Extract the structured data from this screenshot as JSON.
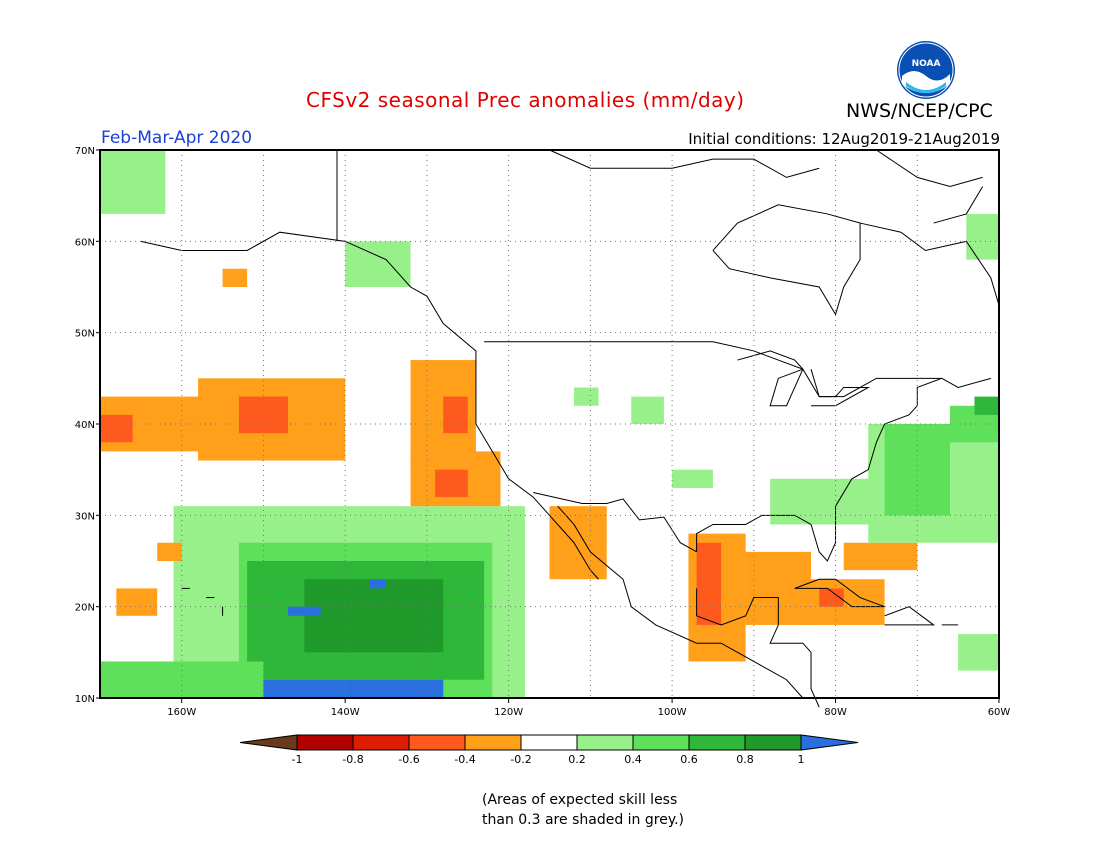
{
  "header": {
    "title": "CFSv2 seasonal Prec anomalies (mm/day)",
    "organization": "NWS/NCEP/CPC",
    "logo_text": "NOAA",
    "period": "Feb-Mar-Apr 2020",
    "initial_conditions": "Initial conditions: 12Aug2019-21Aug2019"
  },
  "axes": {
    "lon_labels": [
      "160W",
      "140W",
      "120W",
      "100W",
      "80W",
      "60W"
    ],
    "lat_labels": [
      "70N",
      "60N",
      "50N",
      "40N",
      "30N",
      "20N",
      "10N"
    ],
    "lon_range": [
      -170,
      -60
    ],
    "lat_range": [
      10,
      70
    ]
  },
  "colorbar": {
    "ticks": [
      "-1",
      "-0.8",
      "-0.6",
      "-0.4",
      "-0.2",
      "0.2",
      "0.4",
      "0.6",
      "0.8",
      "1"
    ],
    "colors": [
      "#6b3a1e",
      "#b00000",
      "#dd1c00",
      "#ff5a1e",
      "#ff9f1a",
      "#ffffff",
      "#98f08a",
      "#5ee05a",
      "#2fb73a",
      "#1f9a2a",
      "#2a6fe0"
    ]
  },
  "colors": {
    "title": "#e00000",
    "period": "#1a3fd8",
    "neg_04": "#ff9f1a",
    "neg_06": "#ff5a1e",
    "neg_08": "#dd1c00",
    "pos_02": "#98f08a",
    "pos_04": "#5ee05a",
    "pos_06": "#2fb73a",
    "pos_08": "#1f9a2a",
    "pos_10": "#2a6fe0"
  },
  "note": {
    "line1": "(Areas of expected skill less",
    "line2": "than 0.3 are shaded in grey.)"
  }
}
